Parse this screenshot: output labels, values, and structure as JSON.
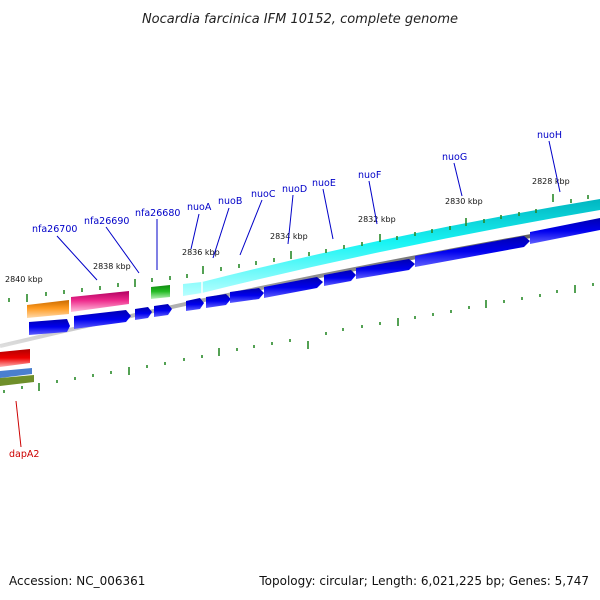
{
  "title": "Nocardia farcinica IFM 10152, complete genome",
  "colors": {
    "background": "#ffffff",
    "axis_line": "#888888",
    "tick_mark": "#2a8a2a",
    "gene_label": "#0000c8",
    "dapA2_label": "#cc0000",
    "gene_blue": "#0000ee",
    "cyan_track": "#00eeee",
    "orange_track": "#ff9a1f",
    "magenta_track": "#ee2a8c",
    "green_track": "#22bb22",
    "red_track": "#ee0000",
    "steelblue_track": "#4a7fcf",
    "olive_track": "#6f8f2a"
  },
  "scale_labels": [
    "2840 kbp",
    "2838 kbp",
    "2836 kbp",
    "2834 kbp",
    "2832 kbp",
    "2830 kbp",
    "2828 kbp"
  ],
  "gene_labels": [
    {
      "name": "nfa26700",
      "color": "#0000c8"
    },
    {
      "name": "nfa26690",
      "color": "#0000c8"
    },
    {
      "name": "nfa26680",
      "color": "#0000c8"
    },
    {
      "name": "nuoA",
      "color": "#0000c8"
    },
    {
      "name": "nuoB",
      "color": "#0000c8"
    },
    {
      "name": "nuoC",
      "color": "#0000c8"
    },
    {
      "name": "nuoD",
      "color": "#0000c8"
    },
    {
      "name": "nuoE",
      "color": "#0000c8"
    },
    {
      "name": "nuoF",
      "color": "#0000c8"
    },
    {
      "name": "nuoG",
      "color": "#0000c8"
    },
    {
      "name": "nuoH",
      "color": "#0000c8"
    },
    {
      "name": "dapA2",
      "color": "#cc0000"
    }
  ],
  "footer": {
    "accession": "Accession: NC_006361",
    "summary": "Topology: circular; Length: 6,021,225 bp; Genes: 5,747"
  }
}
